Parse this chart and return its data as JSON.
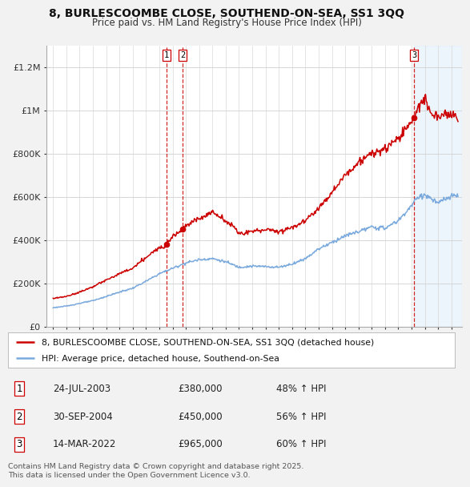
{
  "title_line1": "8, BURLESCOOMBE CLOSE, SOUTHEND-ON-SEA, SS1 3QQ",
  "title_line2": "Price paid vs. HM Land Registry's House Price Index (HPI)",
  "legend_label1": "8, BURLESCOOMBE CLOSE, SOUTHEND-ON-SEA, SS1 3QQ (detached house)",
  "legend_label2": "HPI: Average price, detached house, Southend-on-Sea",
  "footnote": "Contains HM Land Registry data © Crown copyright and database right 2025.\nThis data is licensed under the Open Government Licence v3.0.",
  "sale_color": "#cc0000",
  "hpi_color": "#7aaadd",
  "background_color": "#f2f2f2",
  "plot_bg_color": "#ffffff",
  "transactions": [
    {
      "num": 1,
      "date": "24-JUL-2003",
      "price": 380000,
      "pct": "48%",
      "x": 2003.56
    },
    {
      "num": 2,
      "date": "30-SEP-2004",
      "price": 450000,
      "pct": "56%",
      "x": 2004.75
    },
    {
      "num": 3,
      "date": "14-MAR-2022",
      "price": 965000,
      "pct": "60%",
      "x": 2022.2
    }
  ],
  "shade_start": 2022.2,
  "ylim": [
    0,
    1300000
  ],
  "xlim": [
    1994.5,
    2025.8
  ],
  "yticks": [
    0,
    200000,
    400000,
    600000,
    800000,
    1000000,
    1200000
  ],
  "ytick_labels": [
    "£0",
    "£200K",
    "£400K",
    "£600K",
    "£800K",
    "£1M",
    "£1.2M"
  ],
  "xticks": [
    1995,
    1996,
    1997,
    1998,
    1999,
    2000,
    2001,
    2002,
    2003,
    2004,
    2005,
    2006,
    2007,
    2008,
    2009,
    2010,
    2011,
    2012,
    2013,
    2014,
    2015,
    2016,
    2017,
    2018,
    2019,
    2020,
    2021,
    2022,
    2023,
    2024,
    2025
  ],
  "hpi_years": [
    1995,
    1996,
    1997,
    1998,
    1999,
    2000,
    2001,
    2002,
    2003,
    2004,
    2005,
    2006,
    2007,
    2008,
    2009,
    2010,
    2011,
    2012,
    2013,
    2014,
    2015,
    2016,
    2017,
    2018,
    2019,
    2020,
    2021,
    2022,
    2022.5,
    2023,
    2023.5,
    2024,
    2024.5,
    2025.5
  ],
  "hpi_vals": [
    88000,
    95000,
    108000,
    120000,
    140000,
    160000,
    178000,
    210000,
    245000,
    270000,
    295000,
    310000,
    315000,
    300000,
    275000,
    280000,
    278000,
    275000,
    290000,
    315000,
    360000,
    390000,
    420000,
    440000,
    460000,
    455000,
    490000,
    560000,
    600000,
    610000,
    590000,
    570000,
    590000,
    610000
  ],
  "sale_years": [
    1995,
    1996,
    1997,
    1998,
    1999,
    2000,
    2001,
    2002,
    2003,
    2003.56,
    2004,
    2004.75,
    2005,
    2006,
    2007,
    2007.5,
    2008,
    2008.5,
    2009,
    2010,
    2011,
    2012,
    2013,
    2014,
    2015,
    2016,
    2017,
    2018,
    2019,
    2020,
    2021,
    2022.2,
    2022.5,
    2023,
    2023.5,
    2024,
    2024.5,
    2025.5
  ],
  "sale_vals": [
    130000,
    140000,
    160000,
    185000,
    215000,
    245000,
    270000,
    320000,
    365000,
    380000,
    420000,
    450000,
    470000,
    500000,
    530000,
    510000,
    490000,
    470000,
    430000,
    440000,
    450000,
    440000,
    460000,
    490000,
    550000,
    620000,
    700000,
    760000,
    800000,
    820000,
    870000,
    965000,
    1020000,
    1050000,
    980000,
    970000,
    990000,
    965000
  ]
}
